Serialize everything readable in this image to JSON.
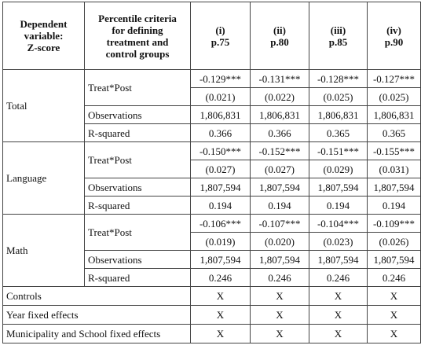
{
  "header": {
    "dep_var": [
      "Dependent",
      "variable:",
      "Z-score"
    ],
    "criteria": [
      "Percentile criteria",
      "for defining",
      "treatment and",
      "control groups"
    ],
    "cols": [
      {
        "num": "(i)",
        "p": "p.75"
      },
      {
        "num": "(ii)",
        "p": "p.80"
      },
      {
        "num": "(iii)",
        "p": "p.85"
      },
      {
        "num": "(iv)",
        "p": "p.90"
      }
    ]
  },
  "groups": [
    {
      "name": "Total",
      "rows": [
        {
          "label": "Treat*Post",
          "coef": [
            "-0.129***",
            "-0.131***",
            "-0.128***",
            "-0.127***"
          ],
          "se": [
            "(0.021)",
            "(0.022)",
            "(0.025)",
            "(0.025)"
          ]
        },
        {
          "label": "Observations",
          "values": [
            "1,806,831",
            "1,806,831",
            "1,806,831",
            "1,806,831"
          ]
        },
        {
          "label": "R-squared",
          "values": [
            "0.366",
            "0.366",
            "0.365",
            "0.365"
          ]
        }
      ]
    },
    {
      "name": "Language",
      "rows": [
        {
          "label": "Treat*Post",
          "coef": [
            "-0.150***",
            "-0.152***",
            "-0.151***",
            "-0.155***"
          ],
          "se": [
            "(0.027)",
            "(0.027)",
            "(0.029)",
            "(0.031)"
          ]
        },
        {
          "label": "Observations",
          "values": [
            "1,807,594",
            "1,807,594",
            "1,807,594",
            "1,807,594"
          ]
        },
        {
          "label": "R-squared",
          "values": [
            "0.194",
            "0.194",
            "0.194",
            "0.194"
          ]
        }
      ]
    },
    {
      "name": "Math",
      "rows": [
        {
          "label": "Treat*Post",
          "coef": [
            "-0.106***",
            "-0.107***",
            "-0.104***",
            "-0.109***"
          ],
          "se": [
            "(0.019)",
            "(0.020)",
            "(0.023)",
            "(0.026)"
          ]
        },
        {
          "label": "Observations",
          "values": [
            "1,807,594",
            "1,807,594",
            "1,807,594",
            "1,807,594"
          ]
        },
        {
          "label": "R-squared",
          "values": [
            "0.246",
            "0.246",
            "0.246",
            "0.246"
          ]
        }
      ]
    }
  ],
  "footer": [
    {
      "label": "Controls",
      "values": [
        "X",
        "X",
        "X",
        "X"
      ]
    },
    {
      "label": "Year fixed effects",
      "values": [
        "X",
        "X",
        "X",
        "X"
      ]
    },
    {
      "label": "Municipality and School fixed effects",
      "values": [
        "X",
        "X",
        "X",
        "X"
      ]
    }
  ]
}
